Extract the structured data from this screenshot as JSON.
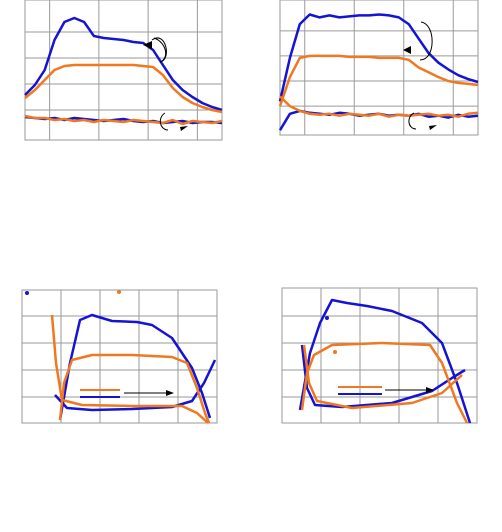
{
  "chart_data": [
    {
      "type": "line",
      "xlim": [
        0,
        200
      ],
      "ylim": [
        0,
        140
      ],
      "xticks": [
        25,
        75,
        125,
        175
      ],
      "yticks": [
        30,
        56,
        82,
        108
      ],
      "grid": true,
      "x": [
        0,
        10,
        20,
        30,
        40,
        50,
        60,
        70,
        80,
        90,
        100,
        110,
        120,
        130,
        140,
        150,
        160,
        170,
        180,
        190,
        200
      ],
      "series": [
        {
          "color": "#1414d2",
          "values": [
            45,
            55,
            70,
            100,
            118,
            122,
            118,
            104,
            102,
            101,
            100,
            98,
            97,
            90,
            75,
            60,
            50,
            43,
            37,
            33,
            30
          ]
        },
        {
          "color": "#f07820",
          "values": [
            42,
            50,
            60,
            70,
            74,
            75,
            75,
            75,
            75,
            75,
            75,
            75,
            74,
            73,
            65,
            52,
            43,
            37,
            33,
            30,
            28
          ]
        },
        {
          "color": "#1414d2",
          "values": [
            23,
            22,
            21,
            22,
            20,
            22,
            21,
            20,
            19,
            20,
            21,
            19,
            18,
            19,
            17,
            18,
            19,
            17,
            18,
            18,
            17
          ]
        },
        {
          "color": "#f07820",
          "values": [
            24,
            22,
            22,
            20,
            21,
            19,
            20,
            18,
            20,
            19,
            18,
            20,
            19,
            18,
            17,
            20,
            16,
            19,
            18,
            17,
            19
          ]
        }
      ]
    },
    {
      "type": "line",
      "xlim": [
        0,
        200
      ],
      "ylim": [
        0,
        140
      ],
      "xticks": [
        25,
        75,
        125,
        175
      ],
      "yticks": [
        30,
        56,
        82,
        108
      ],
      "grid": true,
      "x": [
        0,
        10,
        20,
        30,
        40,
        50,
        60,
        70,
        80,
        90,
        100,
        110,
        120,
        130,
        140,
        150,
        160,
        170,
        180,
        190,
        200
      ],
      "series": [
        {
          "color": "#1414d2",
          "values": [
            35,
            80,
            115,
            125,
            122,
            124,
            122,
            123,
            124,
            124,
            125,
            124,
            122,
            115,
            100,
            85,
            75,
            68,
            62,
            58,
            55
          ]
        },
        {
          "color": "#f07820",
          "values": [
            30,
            60,
            80,
            82,
            82,
            82,
            82,
            81,
            81,
            81,
            80,
            80,
            80,
            78,
            70,
            65,
            60,
            56,
            54,
            53,
            52
          ]
        },
        {
          "color": "#1414d2",
          "values": [
            5,
            22,
            25,
            23,
            22,
            21,
            23,
            22,
            20,
            21,
            22,
            20,
            21,
            20,
            22,
            19,
            20,
            18,
            21,
            19,
            20
          ]
        },
        {
          "color": "#f07820",
          "values": [
            40,
            30,
            25,
            22,
            21,
            22,
            20,
            22,
            21,
            20,
            22,
            19,
            21,
            20,
            21,
            22,
            20,
            21,
            19,
            22,
            23
          ]
        }
      ]
    },
    {
      "type": "line",
      "xlim": [
        0,
        195
      ],
      "ylim": [
        0,
        133
      ],
      "xticks": [
        39,
        78,
        117,
        156
      ],
      "yticks": [
        26,
        53,
        80,
        107
      ],
      "grid": true,
      "series": [
        {
          "color": "#1414d2",
          "x": [
            38,
            48,
            58,
            70,
            90,
            115,
            130,
            150,
            170,
            180,
            188
          ],
          "values": [
            3,
            60,
            103,
            108,
            102,
            101,
            98,
            85,
            55,
            30,
            5
          ]
        },
        {
          "color": "#1414d2",
          "x": [
            33,
            45,
            70,
            110,
            150,
            170,
            182,
            193
          ],
          "values": [
            28,
            15,
            13,
            14,
            16,
            22,
            40,
            63
          ]
        },
        {
          "color": "#f07820",
          "x": [
            38,
            42,
            50,
            70,
            110,
            150,
            165,
            175,
            183,
            187
          ],
          "values": [
            3,
            40,
            63,
            68,
            68,
            66,
            60,
            35,
            10,
            0
          ]
        },
        {
          "color": "#f07820",
          "x": [
            30,
            34,
            40,
            60,
            110,
            160,
            175,
            186
          ],
          "values": [
            108,
            60,
            23,
            18,
            17,
            17,
            10,
            0
          ]
        }
      ]
    },
    {
      "type": "line",
      "xlim": [
        0,
        195
      ],
      "ylim": [
        0,
        135
      ],
      "xticks": [
        39,
        78,
        117,
        156
      ],
      "yticks": [
        26,
        53,
        80,
        107
      ],
      "grid": true,
      "series": [
        {
          "color": "#1414d2",
          "x": [
            18,
            28,
            38,
            50,
            65,
            85,
            110,
            140,
            160,
            175,
            188
          ],
          "values": [
            13,
            70,
            100,
            123,
            120,
            117,
            112,
            100,
            80,
            40,
            0
          ]
        },
        {
          "color": "#1414d2",
          "x": [
            20,
            25,
            33,
            60,
            110,
            150,
            170,
            183
          ],
          "values": [
            78,
            35,
            18,
            16,
            20,
            32,
            45,
            53
          ]
        },
        {
          "color": "#f07820",
          "x": [
            20,
            25,
            32,
            50,
            100,
            148,
            160,
            175,
            185
          ],
          "values": [
            13,
            50,
            68,
            78,
            80,
            78,
            60,
            20,
            0
          ]
        },
        {
          "color": "#f07820",
          "x": [
            22,
            27,
            35,
            70,
            130,
            160,
            180
          ],
          "values": [
            78,
            40,
            22,
            15,
            20,
            30,
            48
          ]
        }
      ]
    }
  ]
}
